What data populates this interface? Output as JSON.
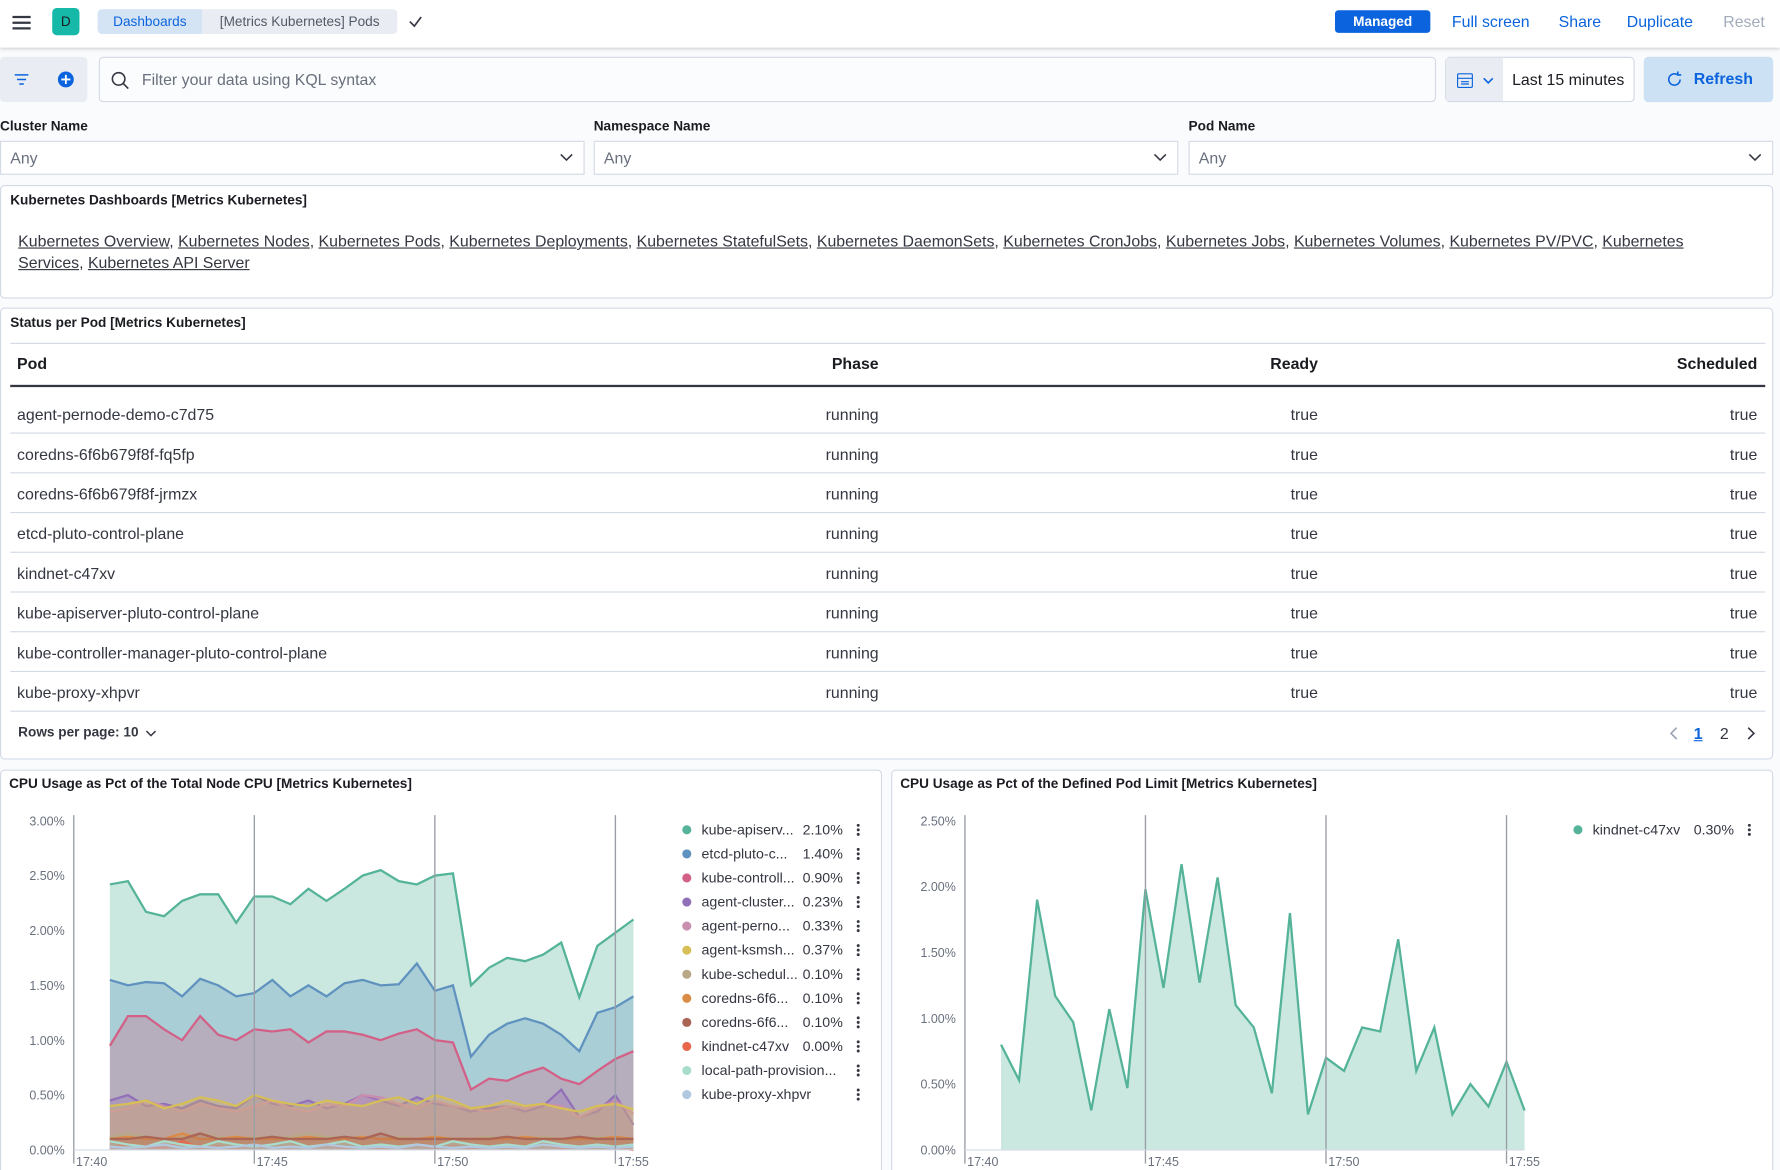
{
  "header": {
    "avatar": "D",
    "breadcrumbs": [
      "Dashboards",
      "[Metrics Kubernetes] Pods"
    ],
    "badge": "Managed",
    "actions": [
      "Full screen",
      "Share",
      "Duplicate",
      "Reset"
    ]
  },
  "query": {
    "placeholder": "Filter your data using KQL syntax",
    "time_range": "Last 15 minutes",
    "refresh": "Refresh"
  },
  "controls": [
    {
      "label": "Cluster Name",
      "value": "Any"
    },
    {
      "label": "Namespace Name",
      "value": "Any"
    },
    {
      "label": "Pod Name",
      "value": "Any"
    }
  ],
  "links_panel": {
    "title": "Kubernetes Dashboards [Metrics Kubernetes]",
    "separator": ",",
    "links": [
      "Kubernetes Overview",
      "Kubernetes Nodes",
      "Kubernetes Pods",
      "Kubernetes Deployments",
      "Kubernetes StatefulSets",
      "Kubernetes DaemonSets",
      "Kubernetes CronJobs",
      "Kubernetes Jobs",
      "Kubernetes Volumes",
      "Kubernetes PV/PVC",
      "Kubernetes Services",
      "Kubernetes API Server"
    ]
  },
  "status_table": {
    "title": "Status per Pod [Metrics Kubernetes]",
    "columns": [
      "Pod",
      "Phase",
      "Ready",
      "Scheduled"
    ],
    "rows": [
      [
        "agent-pernode-demo-c7d75",
        "running",
        "true",
        "true"
      ],
      [
        "coredns-6f6b679f8f-fq5fp",
        "running",
        "true",
        "true"
      ],
      [
        "coredns-6f6b679f8f-jrmzx",
        "running",
        "true",
        "true"
      ],
      [
        "etcd-pluto-control-plane",
        "running",
        "true",
        "true"
      ],
      [
        "kindnet-c47xv",
        "running",
        "true",
        "true"
      ],
      [
        "kube-apiserver-pluto-control-plane",
        "running",
        "true",
        "true"
      ],
      [
        "kube-controller-manager-pluto-control-plane",
        "running",
        "true",
        "true"
      ],
      [
        "kube-proxy-xhpvr",
        "running",
        "true",
        "true"
      ]
    ],
    "rows_per_page": "Rows per page: 10",
    "pages": [
      "1",
      "2"
    ]
  },
  "chart_data": [
    {
      "type": "area",
      "title": "CPU Usage as Pct of the Total Node CPU [Metrics Kubernetes]",
      "x": [
        41,
        41.5,
        42,
        42.5,
        43,
        43.5,
        44,
        44.5,
        45,
        45.5,
        46,
        46.5,
        47,
        47.5,
        48,
        48.5,
        49,
        49.5,
        50,
        50.5,
        51,
        51.5,
        52,
        52.5,
        53,
        53.5,
        54,
        54.5,
        55,
        55.5
      ],
      "xlim": [
        40,
        55.5
      ],
      "xticks": [
        {
          "value": 40,
          "label": "17:40"
        },
        {
          "value": 45,
          "label": "17:45"
        },
        {
          "value": 50,
          "label": "17:50"
        },
        {
          "value": 55,
          "label": "17:55"
        }
      ],
      "ylim": [
        0,
        3
      ],
      "yticks": [
        {
          "value": 0,
          "label": "0.00%"
        },
        {
          "value": 0.5,
          "label": "0.50%"
        },
        {
          "value": 1,
          "label": "1.00%"
        },
        {
          "value": 1.5,
          "label": "1.50%"
        },
        {
          "value": 2,
          "label": "2.00%"
        },
        {
          "value": 2.5,
          "label": "2.50%"
        },
        {
          "value": 3,
          "label": "3.00%"
        }
      ],
      "series": [
        {
          "name": "kube-apiserv...",
          "legend_value": "2.10%",
          "color": "#54b399",
          "values": [
            2.42,
            2.45,
            2.17,
            2.13,
            2.27,
            2.33,
            2.33,
            2.07,
            2.31,
            2.31,
            2.24,
            2.38,
            2.27,
            2.38,
            2.5,
            2.55,
            2.45,
            2.42,
            2.5,
            2.52,
            1.5,
            1.66,
            1.75,
            1.72,
            1.78,
            1.89,
            1.39,
            1.86,
            1.98,
            2.1
          ]
        },
        {
          "name": "etcd-pluto-c...",
          "legend_value": "1.40%",
          "color": "#6092c0",
          "values": [
            1.55,
            1.5,
            1.53,
            1.52,
            1.4,
            1.56,
            1.5,
            1.4,
            1.43,
            1.55,
            1.4,
            1.5,
            1.4,
            1.52,
            1.55,
            1.5,
            1.51,
            1.7,
            1.45,
            1.5,
            0.85,
            1.05,
            1.15,
            1.2,
            1.15,
            1.05,
            0.9,
            1.25,
            1.3,
            1.4
          ]
        },
        {
          "name": "kube-controll...",
          "legend_value": "0.90%",
          "color": "#d36086",
          "values": [
            0.95,
            1.22,
            1.22,
            1.1,
            1.0,
            1.22,
            1.05,
            1.0,
            1.1,
            1.08,
            1.1,
            0.98,
            1.08,
            1.08,
            1.05,
            1.0,
            1.06,
            1.1,
            1.0,
            0.98,
            0.55,
            0.65,
            0.63,
            0.7,
            0.75,
            0.65,
            0.6,
            0.72,
            0.83,
            0.9
          ]
        },
        {
          "name": "agent-cluster...",
          "legend_value": "0.23%",
          "color": "#9170b8",
          "values": [
            0.45,
            0.5,
            0.4,
            0.42,
            0.38,
            0.45,
            0.4,
            0.38,
            0.5,
            0.42,
            0.4,
            0.45,
            0.38,
            0.42,
            0.5,
            0.45,
            0.4,
            0.48,
            0.42,
            0.4,
            0.35,
            0.38,
            0.4,
            0.35,
            0.4,
            0.55,
            0.3,
            0.35,
            0.5,
            0.23
          ]
        },
        {
          "name": "agent-perno...",
          "legend_value": "0.33%",
          "color": "#ca8eae",
          "values": [
            0.35,
            0.38,
            0.45,
            0.4,
            0.35,
            0.42,
            0.38,
            0.35,
            0.4,
            0.45,
            0.38,
            0.35,
            0.42,
            0.4,
            0.5,
            0.48,
            0.42,
            0.38,
            0.45,
            0.4,
            0.38,
            0.35,
            0.4,
            0.38,
            0.42,
            0.4,
            0.3,
            0.38,
            0.45,
            0.33
          ]
        },
        {
          "name": "agent-ksmsh...",
          "legend_value": "0.37%",
          "color": "#d6bf57",
          "values": [
            0.4,
            0.42,
            0.45,
            0.38,
            0.42,
            0.48,
            0.45,
            0.4,
            0.5,
            0.45,
            0.42,
            0.4,
            0.45,
            0.42,
            0.4,
            0.45,
            0.48,
            0.42,
            0.5,
            0.45,
            0.38,
            0.4,
            0.45,
            0.4,
            0.42,
            0.38,
            0.35,
            0.4,
            0.42,
            0.37
          ]
        },
        {
          "name": "kube-schedul...",
          "legend_value": "0.10%",
          "color": "#b9a888",
          "values": [
            0.12,
            0.15,
            0.12,
            0.1,
            0.12,
            0.15,
            0.12,
            0.1,
            0.12,
            0.1,
            0.12,
            0.15,
            0.12,
            0.1,
            0.12,
            0.1,
            0.12,
            0.1,
            0.12,
            0.1,
            0.1,
            0.12,
            0.1,
            0.1,
            0.12,
            0.1,
            0.1,
            0.12,
            0.1,
            0.1
          ]
        },
        {
          "name": "coredns-6f6...",
          "legend_value": "0.10%",
          "color": "#da8b45",
          "values": [
            0.1,
            0.12,
            0.1,
            0.1,
            0.15,
            0.1,
            0.1,
            0.12,
            0.1,
            0.1,
            0.1,
            0.12,
            0.1,
            0.1,
            0.12,
            0.1,
            0.1,
            0.1,
            0.12,
            0.1,
            0.1,
            0.1,
            0.1,
            0.12,
            0.1,
            0.1,
            0.1,
            0.1,
            0.12,
            0.1
          ]
        },
        {
          "name": "coredns-6f6...",
          "legend_value": "0.10%",
          "color": "#aa6556",
          "values": [
            0.1,
            0.1,
            0.12,
            0.1,
            0.1,
            0.15,
            0.1,
            0.1,
            0.1,
            0.12,
            0.1,
            0.1,
            0.1,
            0.12,
            0.1,
            0.15,
            0.1,
            0.1,
            0.1,
            0.1,
            0.1,
            0.1,
            0.12,
            0.1,
            0.1,
            0.1,
            0.12,
            0.1,
            0.1,
            0.1
          ]
        },
        {
          "name": "kindnet-c47xv",
          "legend_value": "0.00%",
          "color": "#e7664c",
          "values": [
            0.02,
            0.05,
            0.03,
            0.02,
            0.08,
            0.02,
            0.03,
            0.02,
            0.05,
            0.02,
            0.03,
            0.02,
            0.05,
            0.02,
            0.03,
            0.02,
            0.02,
            0.05,
            0.02,
            0.03,
            0.02,
            0.02,
            0.03,
            0.02,
            0.05,
            0.02,
            0.02,
            0.03,
            0.02,
            0
          ]
        },
        {
          "name": "local-path-provision...",
          "color": "#a8dccc",
          "values": [
            0.08,
            0.05,
            0.03,
            0.08,
            0.05,
            0.03,
            0.08,
            0.05,
            0.03,
            0.05,
            0.08,
            0.03,
            0.05,
            0.08,
            0.03,
            0.05,
            0.03,
            0.05,
            0.03,
            0.08,
            0.05,
            0.03,
            0.05,
            0.03,
            0.08,
            0.05,
            0.03,
            0.05,
            0.03,
            0.05
          ]
        },
        {
          "name": "kube-proxy-xhpvr",
          "color": "#b0c9e0",
          "values": [
            0.03,
            0.02,
            0.03,
            0.05,
            0.02,
            0.03,
            0.02,
            0.03,
            0.05,
            0.02,
            0.03,
            0.02,
            0.05,
            0.03,
            0.02,
            0.03,
            0.02,
            0.05,
            0.03,
            0.02,
            0.03,
            0.02,
            0.03,
            0.02,
            0.05,
            0.03,
            0.02,
            0.03,
            0.02,
            0.03
          ]
        }
      ]
    },
    {
      "type": "area",
      "title": "CPU Usage as Pct of the Defined Pod Limit [Metrics Kubernetes]",
      "x": [
        41,
        41.5,
        42,
        42.5,
        43,
        43.5,
        44,
        44.5,
        45,
        45.5,
        46,
        46.5,
        47,
        47.5,
        48,
        48.5,
        49,
        49.5,
        50,
        50.5,
        51,
        51.5,
        52,
        52.5,
        53,
        53.5,
        54,
        54.5,
        55,
        55.5
      ],
      "xlim": [
        40,
        55.5
      ],
      "xticks": [
        {
          "value": 40,
          "label": "17:40"
        },
        {
          "value": 45,
          "label": "17:45"
        },
        {
          "value": 50,
          "label": "17:50"
        },
        {
          "value": 55,
          "label": "17:55"
        }
      ],
      "ylim": [
        0,
        2.5
      ],
      "yticks": [
        {
          "value": 0,
          "label": "0.00%"
        },
        {
          "value": 0.5,
          "label": "0.50%"
        },
        {
          "value": 1,
          "label": "1.00%"
        },
        {
          "value": 1.5,
          "label": "1.50%"
        },
        {
          "value": 2,
          "label": "2.00%"
        },
        {
          "value": 2.5,
          "label": "2.50%"
        }
      ],
      "series": [
        {
          "name": "kindnet-c47xv",
          "legend_value": "0.30%",
          "color": "#54b399",
          "values": [
            0.8,
            0.53,
            1.9,
            1.17,
            0.97,
            0.3,
            1.07,
            0.47,
            1.98,
            1.23,
            2.17,
            1.27,
            2.07,
            1.1,
            0.93,
            0.43,
            1.8,
            0.27,
            0.7,
            0.6,
            0.93,
            0.9,
            1.6,
            0.6,
            0.93,
            0.27,
            0.5,
            0.33,
            0.67,
            0.3
          ]
        }
      ]
    }
  ]
}
